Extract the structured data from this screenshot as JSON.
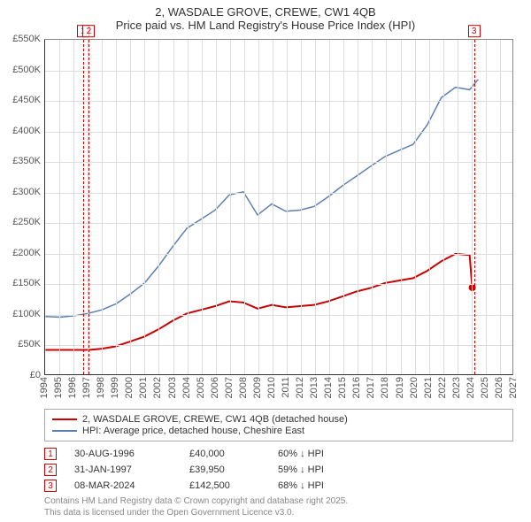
{
  "title": {
    "line1": "2, WASDALE GROVE, CREWE, CW1 4QB",
    "line2": "Price paid vs. HM Land Registry's House Price Index (HPI)"
  },
  "chart": {
    "type": "line",
    "background_color": "#ffffff",
    "grid_color": "#dddddd",
    "axis_color": "#555555",
    "x": {
      "min": 1994,
      "max": 2027,
      "ticks": [
        1994,
        1995,
        1996,
        1997,
        1998,
        1999,
        2000,
        2001,
        2002,
        2003,
        2004,
        2005,
        2006,
        2007,
        2008,
        2009,
        2010,
        2011,
        2012,
        2013,
        2014,
        2015,
        2016,
        2017,
        2018,
        2019,
        2020,
        2021,
        2022,
        2023,
        2024,
        2025,
        2026,
        2027
      ]
    },
    "y": {
      "min": 0,
      "max": 550000,
      "tick_labels": [
        "£0",
        "£50K",
        "£100K",
        "£150K",
        "£200K",
        "£250K",
        "£300K",
        "£350K",
        "£400K",
        "£450K",
        "£500K",
        "£550K"
      ],
      "tick_values": [
        0,
        50000,
        100000,
        150000,
        200000,
        250000,
        300000,
        350000,
        400000,
        450000,
        500000,
        550000
      ]
    },
    "series": [
      {
        "id": "price_paid",
        "label": "2, WASDALE GROVE, CREWE, CW1 4QB (detached house)",
        "color": "#cc0000",
        "line_width": 2,
        "points": [
          [
            1994,
            40000
          ],
          [
            1995,
            40000
          ],
          [
            1996,
            40000
          ],
          [
            1996.66,
            40000
          ],
          [
            1997.08,
            39950
          ],
          [
            1998,
            42000
          ],
          [
            1999,
            46000
          ],
          [
            2000,
            54000
          ],
          [
            2001,
            62000
          ],
          [
            2002,
            74000
          ],
          [
            2003,
            88000
          ],
          [
            2004,
            100000
          ],
          [
            2005,
            106000
          ],
          [
            2006,
            112000
          ],
          [
            2007,
            120000
          ],
          [
            2008,
            118000
          ],
          [
            2009,
            108000
          ],
          [
            2010,
            114000
          ],
          [
            2011,
            110000
          ],
          [
            2012,
            112000
          ],
          [
            2013,
            114000
          ],
          [
            2014,
            120000
          ],
          [
            2015,
            128000
          ],
          [
            2016,
            136000
          ],
          [
            2017,
            142000
          ],
          [
            2018,
            150000
          ],
          [
            2019,
            154000
          ],
          [
            2020,
            158000
          ],
          [
            2021,
            170000
          ],
          [
            2022,
            186000
          ],
          [
            2023,
            198000
          ],
          [
            2024,
            196000
          ],
          [
            2024.18,
            142500
          ]
        ],
        "end_marker": {
          "x": 2024.18,
          "y": 142500,
          "shape": "circle",
          "size": 4,
          "color": "#cc0000"
        }
      },
      {
        "id": "hpi",
        "label": "HPI: Average price, detached house, Cheshire East",
        "color": "#5b7fb4",
        "line_width": 1.5,
        "points": [
          [
            1994,
            95000
          ],
          [
            1995,
            94000
          ],
          [
            1996,
            96000
          ],
          [
            1997,
            100000
          ],
          [
            1998,
            106000
          ],
          [
            1999,
            116000
          ],
          [
            2000,
            132000
          ],
          [
            2001,
            150000
          ],
          [
            2002,
            178000
          ],
          [
            2003,
            210000
          ],
          [
            2004,
            240000
          ],
          [
            2005,
            255000
          ],
          [
            2006,
            270000
          ],
          [
            2007,
            295000
          ],
          [
            2008,
            300000
          ],
          [
            2009,
            262000
          ],
          [
            2010,
            280000
          ],
          [
            2011,
            268000
          ],
          [
            2012,
            270000
          ],
          [
            2013,
            276000
          ],
          [
            2014,
            292000
          ],
          [
            2015,
            310000
          ],
          [
            2016,
            326000
          ],
          [
            2017,
            342000
          ],
          [
            2018,
            358000
          ],
          [
            2019,
            368000
          ],
          [
            2020,
            378000
          ],
          [
            2021,
            410000
          ],
          [
            2022,
            455000
          ],
          [
            2023,
            472000
          ],
          [
            2024,
            468000
          ],
          [
            2024.6,
            485000
          ]
        ]
      }
    ],
    "markers": [
      {
        "num": "1",
        "x": 1996.66,
        "color": "#cc0000"
      },
      {
        "num": "2",
        "x": 1997.08,
        "color": "#cc0000"
      },
      {
        "num": "3",
        "x": 2024.18,
        "color": "#cc0000"
      }
    ]
  },
  "legend": {
    "rows": [
      {
        "color": "#cc0000",
        "label": "2, WASDALE GROVE, CREWE, CW1 4QB (detached house)"
      },
      {
        "color": "#5b7fb4",
        "label": "HPI: Average price, detached house, Cheshire East"
      }
    ]
  },
  "events": [
    {
      "num": "1",
      "color": "#cc0000",
      "date": "30-AUG-1996",
      "price": "£40,000",
      "delta": "60% ↓ HPI"
    },
    {
      "num": "2",
      "color": "#cc0000",
      "date": "31-JAN-1997",
      "price": "£39,950",
      "delta": "59% ↓ HPI"
    },
    {
      "num": "3",
      "color": "#cc0000",
      "date": "08-MAR-2024",
      "price": "£142,500",
      "delta": "68% ↓ HPI"
    }
  ],
  "footer": {
    "line1": "Contains HM Land Registry data © Crown copyright and database right 2025.",
    "line2": "This data is licensed under the Open Government Licence v3.0."
  }
}
